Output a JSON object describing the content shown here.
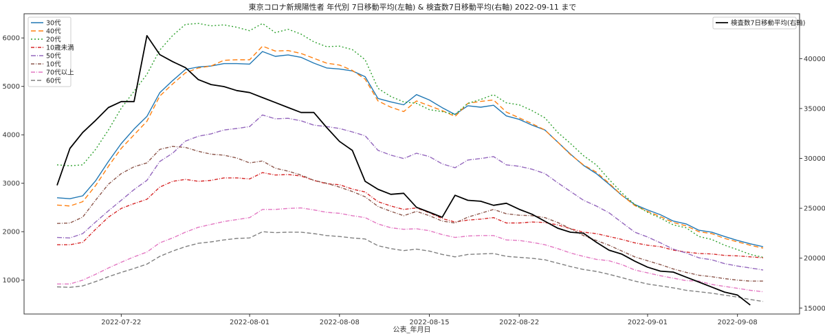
{
  "chart_data": {
    "type": "line",
    "title": "東京コロナ新規陽性者 年代別 7日移動平均(左軸) & 検査数7日移動平均(右軸) 2022-09-11 まで",
    "xlabel": "公表_年月日",
    "x_ticks": [
      "2022-07-22",
      "2022-08-01",
      "2022-08-08",
      "2022-08-15",
      "2022-08-22",
      "2022-09-01",
      "2022-09-08"
    ],
    "x_start": "2022-07-17",
    "x_end": "2022-09-11",
    "left_ylim": [
      300,
      6500
    ],
    "left_ticks": [
      1000,
      2000,
      3000,
      4000,
      5000,
      6000
    ],
    "right_ylim": [
      14400,
      44500
    ],
    "right_ticks": [
      15000,
      20000,
      25000,
      30000,
      35000,
      40000
    ],
    "legend_left_position": "top-left",
    "legend_right_position": "top-right",
    "series": [
      {
        "name": "30代",
        "color": "#1f77b4",
        "dash": "solid",
        "axis": "left",
        "values": [
          2700,
          2680,
          2740,
          3050,
          3450,
          3820,
          4120,
          4380,
          4870,
          5120,
          5350,
          5400,
          5420,
          5470,
          5470,
          5460,
          5720,
          5620,
          5650,
          5600,
          5480,
          5380,
          5360,
          5320,
          5200,
          4750,
          4680,
          4620,
          4830,
          4720,
          4560,
          4420,
          4600,
          4570,
          4610,
          4390,
          4320,
          4200,
          4100,
          3850,
          3600,
          3370,
          3200,
          2980,
          2750,
          2560,
          2450,
          2350,
          2220,
          2160,
          2030,
          1990,
          1900,
          1820,
          1750,
          1690
        ]
      },
      {
        "name": "40代",
        "color": "#ff7f0e",
        "dash": "7,4",
        "axis": "left",
        "values": [
          2550,
          2530,
          2620,
          2950,
          3350,
          3720,
          4000,
          4280,
          4800,
          5050,
          5280,
          5380,
          5420,
          5540,
          5550,
          5550,
          5830,
          5730,
          5740,
          5680,
          5580,
          5480,
          5440,
          5330,
          5150,
          4700,
          4570,
          4480,
          4700,
          4600,
          4500,
          4380,
          4650,
          4690,
          4720,
          4470,
          4350,
          4230,
          4100,
          3850,
          3590,
          3380,
          3230,
          3000,
          2750,
          2540,
          2420,
          2310,
          2190,
          2120,
          2000,
          1960,
          1860,
          1790,
          1720,
          1660
        ]
      },
      {
        "name": "20代",
        "color": "#2ca02c",
        "dash": "2,3",
        "axis": "left",
        "values": [
          3380,
          3360,
          3380,
          3700,
          4100,
          4550,
          4900,
          5250,
          5750,
          6050,
          6280,
          6300,
          6250,
          6270,
          6220,
          6150,
          6300,
          6110,
          6180,
          6080,
          5920,
          5820,
          5830,
          5760,
          5550,
          4960,
          4790,
          4680,
          4650,
          4520,
          4480,
          4420,
          4650,
          4730,
          4830,
          4660,
          4620,
          4500,
          4350,
          4050,
          3820,
          3570,
          3380,
          3080,
          2800,
          2560,
          2400,
          2280,
          2140,
          2080,
          1900,
          1840,
          1720,
          1630,
          1530,
          1470
        ]
      },
      {
        "name": "10歳未満",
        "color": "#d62728",
        "dash": "5,2,1,2",
        "axis": "left",
        "values": [
          1730,
          1730,
          1780,
          2050,
          2300,
          2480,
          2580,
          2670,
          2920,
          3040,
          3080,
          3040,
          3060,
          3110,
          3110,
          3090,
          3220,
          3170,
          3180,
          3150,
          3060,
          2990,
          2970,
          2880,
          2820,
          2620,
          2530,
          2460,
          2490,
          2390,
          2270,
          2200,
          2240,
          2260,
          2290,
          2180,
          2180,
          2200,
          2190,
          2140,
          2060,
          1990,
          1960,
          1900,
          1840,
          1770,
          1720,
          1690,
          1620,
          1580,
          1550,
          1540,
          1510,
          1500,
          1480,
          1460
        ]
      },
      {
        "name": "50代",
        "color": "#9467bd",
        "dash": "7,2,1,2",
        "axis": "left",
        "values": [
          1880,
          1870,
          1960,
          2200,
          2430,
          2650,
          2870,
          3060,
          3450,
          3620,
          3870,
          3970,
          4020,
          4100,
          4130,
          4170,
          4410,
          4330,
          4340,
          4290,
          4200,
          4170,
          4130,
          4060,
          3980,
          3680,
          3580,
          3510,
          3620,
          3550,
          3400,
          3320,
          3480,
          3510,
          3550,
          3380,
          3350,
          3290,
          3200,
          3010,
          2830,
          2650,
          2530,
          2390,
          2190,
          1990,
          1890,
          1770,
          1640,
          1560,
          1460,
          1420,
          1340,
          1290,
          1250,
          1210
        ]
      },
      {
        "name": "10代",
        "color": "#8c564b",
        "dash": "5,2,1,2",
        "axis": "left",
        "values": [
          2170,
          2180,
          2300,
          2650,
          2980,
          3200,
          3340,
          3420,
          3700,
          3760,
          3740,
          3660,
          3600,
          3580,
          3520,
          3420,
          3460,
          3310,
          3250,
          3170,
          3060,
          3000,
          2920,
          2830,
          2720,
          2520,
          2420,
          2330,
          2420,
          2330,
          2220,
          2180,
          2300,
          2380,
          2460,
          2370,
          2340,
          2330,
          2290,
          2190,
          2060,
          1920,
          1820,
          1720,
          1600,
          1480,
          1400,
          1320,
          1230,
          1160,
          1100,
          1070,
          1030,
          1000,
          980,
          980
        ]
      },
      {
        "name": "70代以上",
        "color": "#e377c2",
        "dash": "6,2,1,2",
        "axis": "left",
        "values": [
          920,
          920,
          1000,
          1120,
          1250,
          1370,
          1480,
          1580,
          1770,
          1870,
          1990,
          2090,
          2150,
          2210,
          2250,
          2290,
          2460,
          2460,
          2480,
          2490,
          2450,
          2400,
          2380,
          2330,
          2290,
          2160,
          2080,
          2050,
          2060,
          2020,
          1940,
          1880,
          1910,
          1920,
          1920,
          1830,
          1820,
          1780,
          1730,
          1650,
          1560,
          1490,
          1430,
          1400,
          1320,
          1210,
          1150,
          1090,
          1040,
          990,
          980,
          910,
          870,
          830,
          790,
          760
        ]
      },
      {
        "name": "60代",
        "color": "#7f7f7f",
        "dash": "6,3",
        "axis": "left",
        "values": [
          860,
          850,
          880,
          970,
          1070,
          1160,
          1240,
          1330,
          1490,
          1600,
          1690,
          1760,
          1790,
          1830,
          1860,
          1870,
          2000,
          1980,
          1990,
          1990,
          1960,
          1920,
          1900,
          1870,
          1850,
          1710,
          1650,
          1610,
          1640,
          1600,
          1530,
          1480,
          1530,
          1540,
          1550,
          1490,
          1470,
          1450,
          1420,
          1350,
          1280,
          1220,
          1180,
          1120,
          1050,
          980,
          920,
          880,
          840,
          790,
          760,
          730,
          690,
          650,
          600,
          560
        ]
      },
      {
        "name": "検査数7日移動平均(右軸)",
        "color": "#000000",
        "dash": "solid",
        "axis": "right",
        "values": [
          27300,
          31000,
          32600,
          33800,
          35100,
          35700,
          35700,
          42300,
          40400,
          39700,
          39100,
          37900,
          37400,
          37200,
          36800,
          36600,
          36100,
          35600,
          35100,
          34600,
          34600,
          33100,
          31700,
          30800,
          27700,
          26900,
          26400,
          26500,
          25100,
          24600,
          24100,
          26300,
          25800,
          25700,
          25300,
          25500,
          24900,
          24400,
          23700,
          23000,
          22600,
          22500,
          21600,
          20800,
          20400,
          19700,
          19100,
          18700,
          18600,
          18100,
          17600,
          17100,
          16600,
          16300,
          15300
        ]
      }
    ]
  }
}
